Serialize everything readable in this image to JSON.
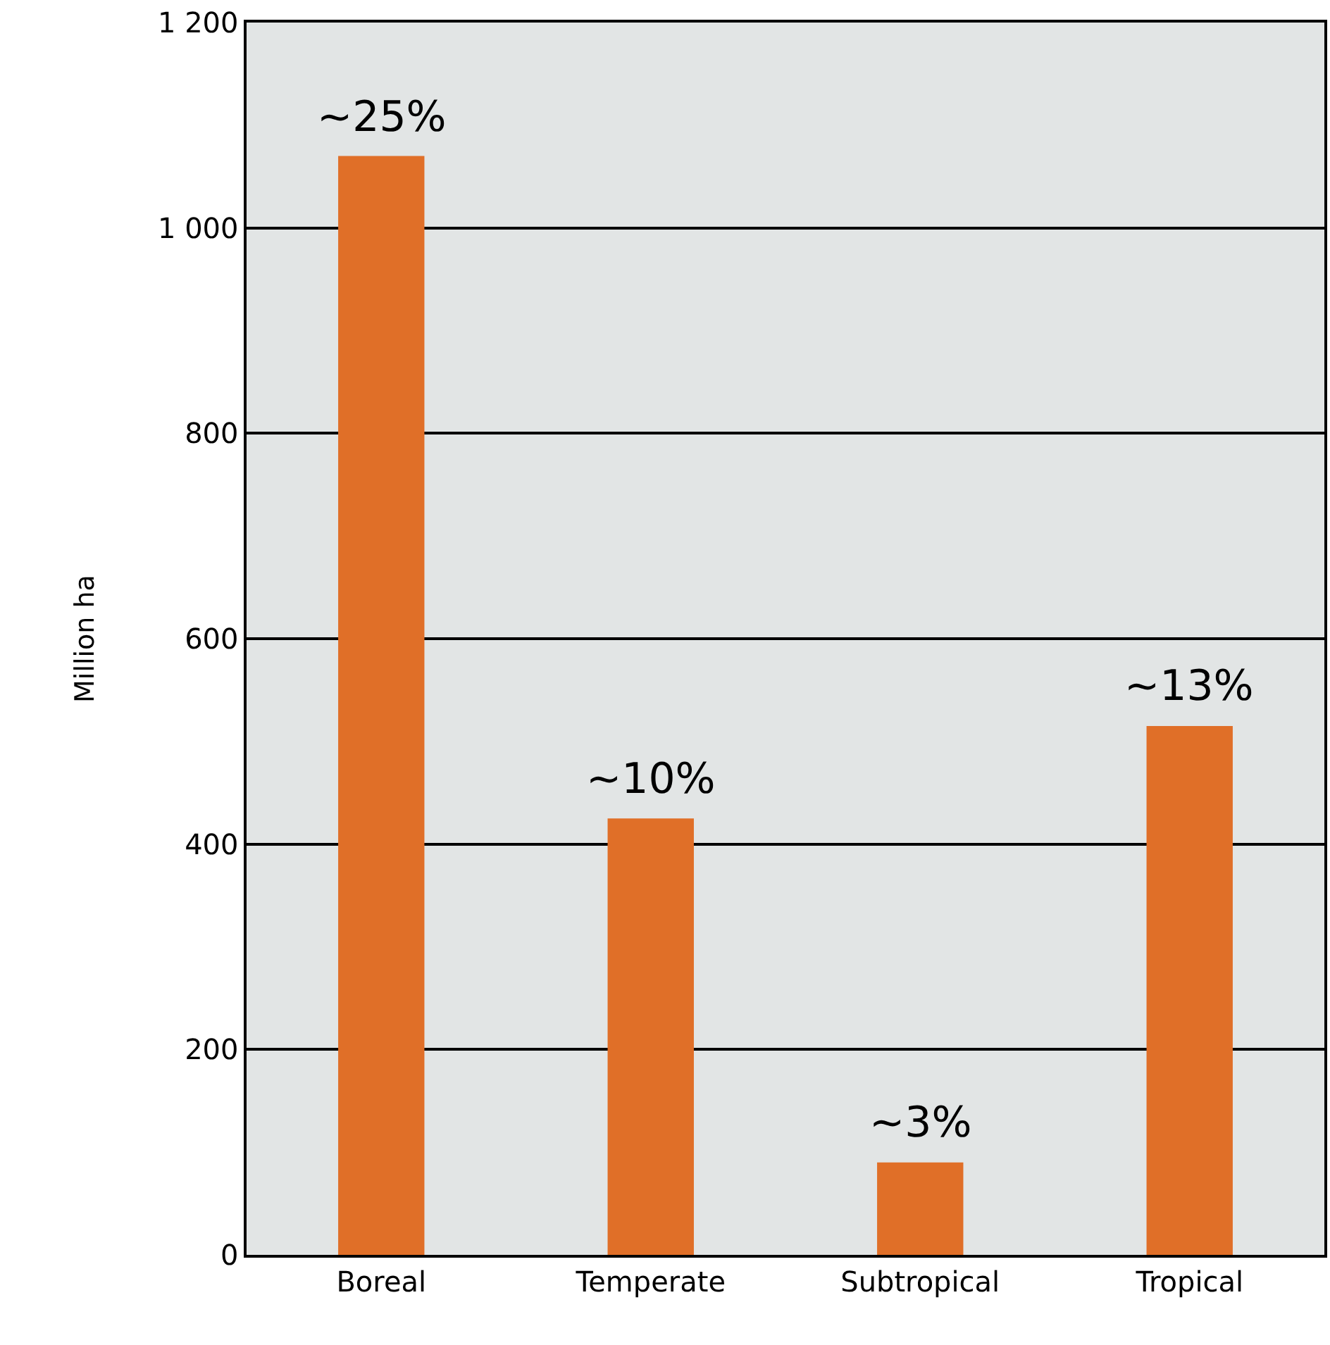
{
  "chart_data": {
    "type": "bar",
    "ylabel": "Million ha",
    "categories": [
      "Boreal",
      "Temperate",
      "Subtropical",
      "Tropical"
    ],
    "values": [
      1070,
      425,
      90,
      515
    ],
    "annotations": [
      {
        "text": "~25%",
        "x": "Boreal",
        "y": 1070
      },
      {
        "text": "~10%",
        "x": "Temperate",
        "y": 425
      },
      {
        "text": "~3%",
        "x": "Subtropical",
        "y": 90
      },
      {
        "text": "~13%",
        "x": "Tropical",
        "y": 515
      }
    ],
    "color": "#e06f28",
    "ylim": [
      0,
      1200
    ],
    "yticks": [
      0,
      200,
      400,
      600,
      800,
      {
        "value": 1000,
        "label": "1 000"
      },
      {
        "value": 1200,
        "label": "1 200"
      }
    ],
    "grid": "y"
  }
}
